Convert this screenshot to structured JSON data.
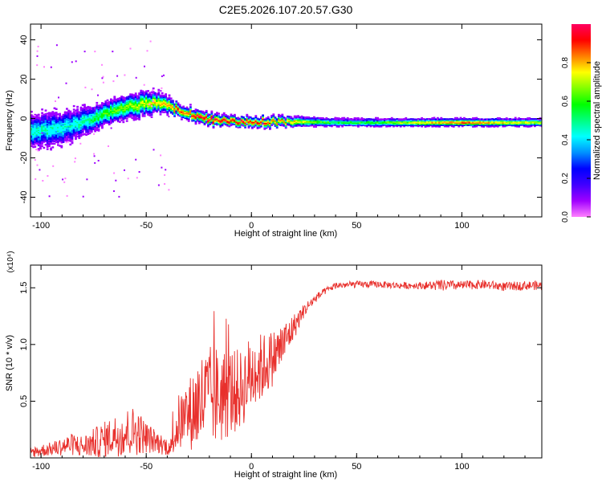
{
  "title": "C2E5.2026.107.20.57.G30",
  "chart_data": [
    {
      "type": "heatmap",
      "xlabel": "Height of straight line (km)",
      "ylabel": "Frequency (Hz)",
      "xlim": [
        -105,
        138
      ],
      "ylim": [
        -50,
        48
      ],
      "xticks": [
        -100,
        -50,
        0,
        50,
        100
      ],
      "yticks": [
        -40,
        -20,
        0,
        20,
        40
      ],
      "colorbar": {
        "label": "Normalized spectral amplitude",
        "range": [
          0,
          1
        ],
        "ticks": [
          "0.0",
          "0.2",
          "0.4",
          "0.6",
          "0.8"
        ],
        "colors": [
          "#ff80ff",
          "#a000ff",
          "#4000ff",
          "#0000ff",
          "#0090ff",
          "#00ffff",
          "#00ff80",
          "#00ff00",
          "#80ff00",
          "#ffff00",
          "#ff8000",
          "#ff0000",
          "#ff0060"
        ]
      },
      "ridge": {
        "x": [
          -105,
          -95,
          -85,
          -78,
          -70,
          -60,
          -52,
          -45,
          -40,
          -35,
          -30,
          -25,
          -20,
          -10,
          0,
          10,
          20,
          40,
          60,
          80,
          100,
          120,
          138
        ],
        "frequency_hz": [
          -6,
          -5,
          -3,
          0,
          3,
          6,
          8,
          9,
          7,
          5,
          3,
          2,
          0,
          -1,
          -1,
          -1,
          -1,
          -1.5,
          -1.5,
          -1.5,
          -1.5,
          -1.5,
          -1.5
        ],
        "amplitude": [
          0.45,
          0.45,
          0.45,
          0.5,
          0.6,
          0.65,
          0.7,
          0.75,
          0.8,
          0.85,
          0.85,
          0.9,
          0.9,
          0.9,
          0.9,
          0.85,
          0.75,
          0.55,
          0.6,
          0.75,
          0.85,
          0.75,
          0.7
        ],
        "spread_hz": [
          9,
          9,
          8,
          7,
          6,
          6,
          6,
          5,
          4,
          3,
          3,
          3,
          3,
          2.5,
          2.5,
          2.5,
          2.5,
          2,
          2,
          2,
          2,
          2,
          2
        ]
      }
    },
    {
      "type": "line",
      "xlabel": "Height of straight line (km)",
      "ylabel": "SNR (10 * v/v)",
      "scale_label": "(x10⁴)",
      "xlim": [
        -105,
        138
      ],
      "ylim": [
        0,
        1.7
      ],
      "xticks": [
        -100,
        -50,
        0,
        50,
        100
      ],
      "yticks": [
        0.5,
        1.0,
        1.5
      ],
      "ytick_labels": [
        "0.5",
        "1.0",
        "1.5"
      ],
      "line_color": "#e8302c",
      "series": [
        {
          "x": [
            -105,
            -95,
            -85,
            -80,
            -75,
            -70,
            -65,
            -60,
            -55,
            -50,
            -45,
            -40,
            -38,
            -35,
            -30,
            -25,
            -20,
            -15,
            -10,
            -5,
            0,
            5,
            10,
            15,
            20,
            25,
            30,
            35,
            40,
            50,
            60,
            70,
            80,
            90,
            100,
            110,
            120,
            130,
            138
          ],
          "values": [
            0.05,
            0.08,
            0.12,
            0.1,
            0.13,
            0.16,
            0.2,
            0.22,
            0.24,
            0.18,
            0.14,
            0.1,
            0.1,
            0.3,
            0.38,
            0.48,
            0.54,
            0.55,
            0.58,
            0.6,
            0.75,
            0.8,
            0.88,
            1.0,
            1.15,
            1.3,
            1.4,
            1.47,
            1.52,
            1.53,
            1.53,
            1.52,
            1.52,
            1.52,
            1.52,
            1.53,
            1.51,
            1.52,
            1.52
          ],
          "noise": [
            0.05,
            0.06,
            0.1,
            0.1,
            0.13,
            0.16,
            0.18,
            0.22,
            0.22,
            0.14,
            0.1,
            0.08,
            0.08,
            0.25,
            0.3,
            0.45,
            0.45,
            0.45,
            0.4,
            0.35,
            0.35,
            0.3,
            0.25,
            0.2,
            0.12,
            0.06,
            0.04,
            0.03,
            0.03,
            0.03,
            0.03,
            0.03,
            0.03,
            0.05,
            0.04,
            0.04,
            0.04,
            0.04,
            0.04
          ]
        }
      ]
    }
  ]
}
